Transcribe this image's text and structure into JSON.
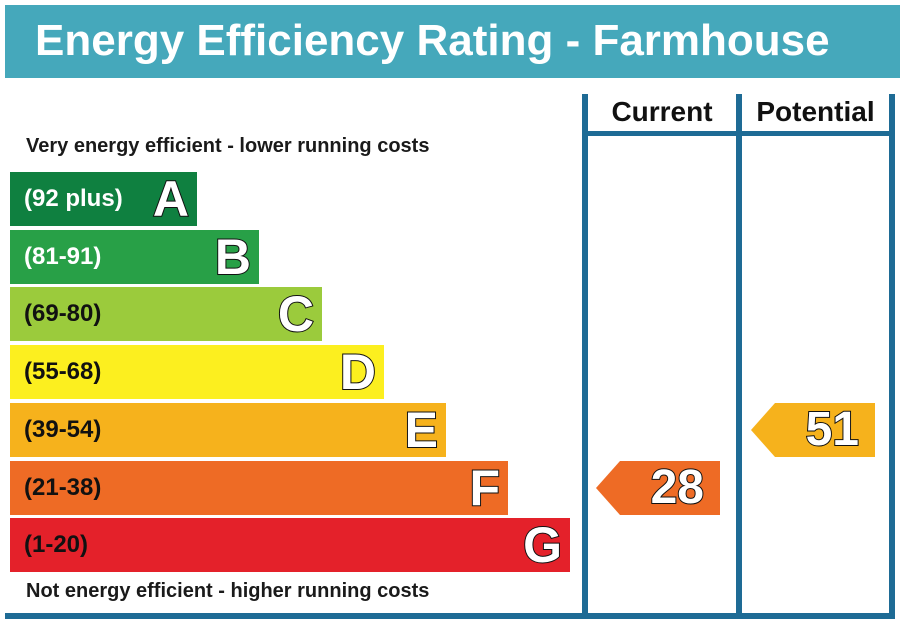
{
  "title": "Energy Efficiency Rating - Farmhouse",
  "caption_top": "Very energy efficient - lower running costs",
  "caption_bottom": "Not energy efficient - higher running costs",
  "columns": {
    "current": "Current",
    "potential": "Potential"
  },
  "colors": {
    "title_bg": "#45a8bb",
    "frame": "#1e6b95"
  },
  "chart_data": {
    "type": "bar",
    "bands": [
      {
        "letter": "A",
        "range": "(92 plus)",
        "min": 92,
        "max": 100,
        "color": "#0f8040",
        "text_color": "#ffffff"
      },
      {
        "letter": "B",
        "range": "(81-91)",
        "min": 81,
        "max": 91,
        "color": "#28a047",
        "text_color": "#ffffff"
      },
      {
        "letter": "C",
        "range": "(69-80)",
        "min": 69,
        "max": 80,
        "color": "#9bcb3c",
        "text_color": "#111111"
      },
      {
        "letter": "D",
        "range": "(55-68)",
        "min": 55,
        "max": 68,
        "color": "#fcef1f",
        "text_color": "#111111"
      },
      {
        "letter": "E",
        "range": "(39-54)",
        "min": 39,
        "max": 54,
        "color": "#f6b21c",
        "text_color": "#111111"
      },
      {
        "letter": "F",
        "range": "(21-38)",
        "min": 21,
        "max": 38,
        "color": "#ee6b25",
        "text_color": "#111111"
      },
      {
        "letter": "G",
        "range": "(1-20)",
        "min": 1,
        "max": 20,
        "color": "#e4212a",
        "text_color": "#111111"
      }
    ],
    "current": {
      "value": 28,
      "band": "F"
    },
    "potential": {
      "value": 51,
      "band": "E"
    }
  }
}
